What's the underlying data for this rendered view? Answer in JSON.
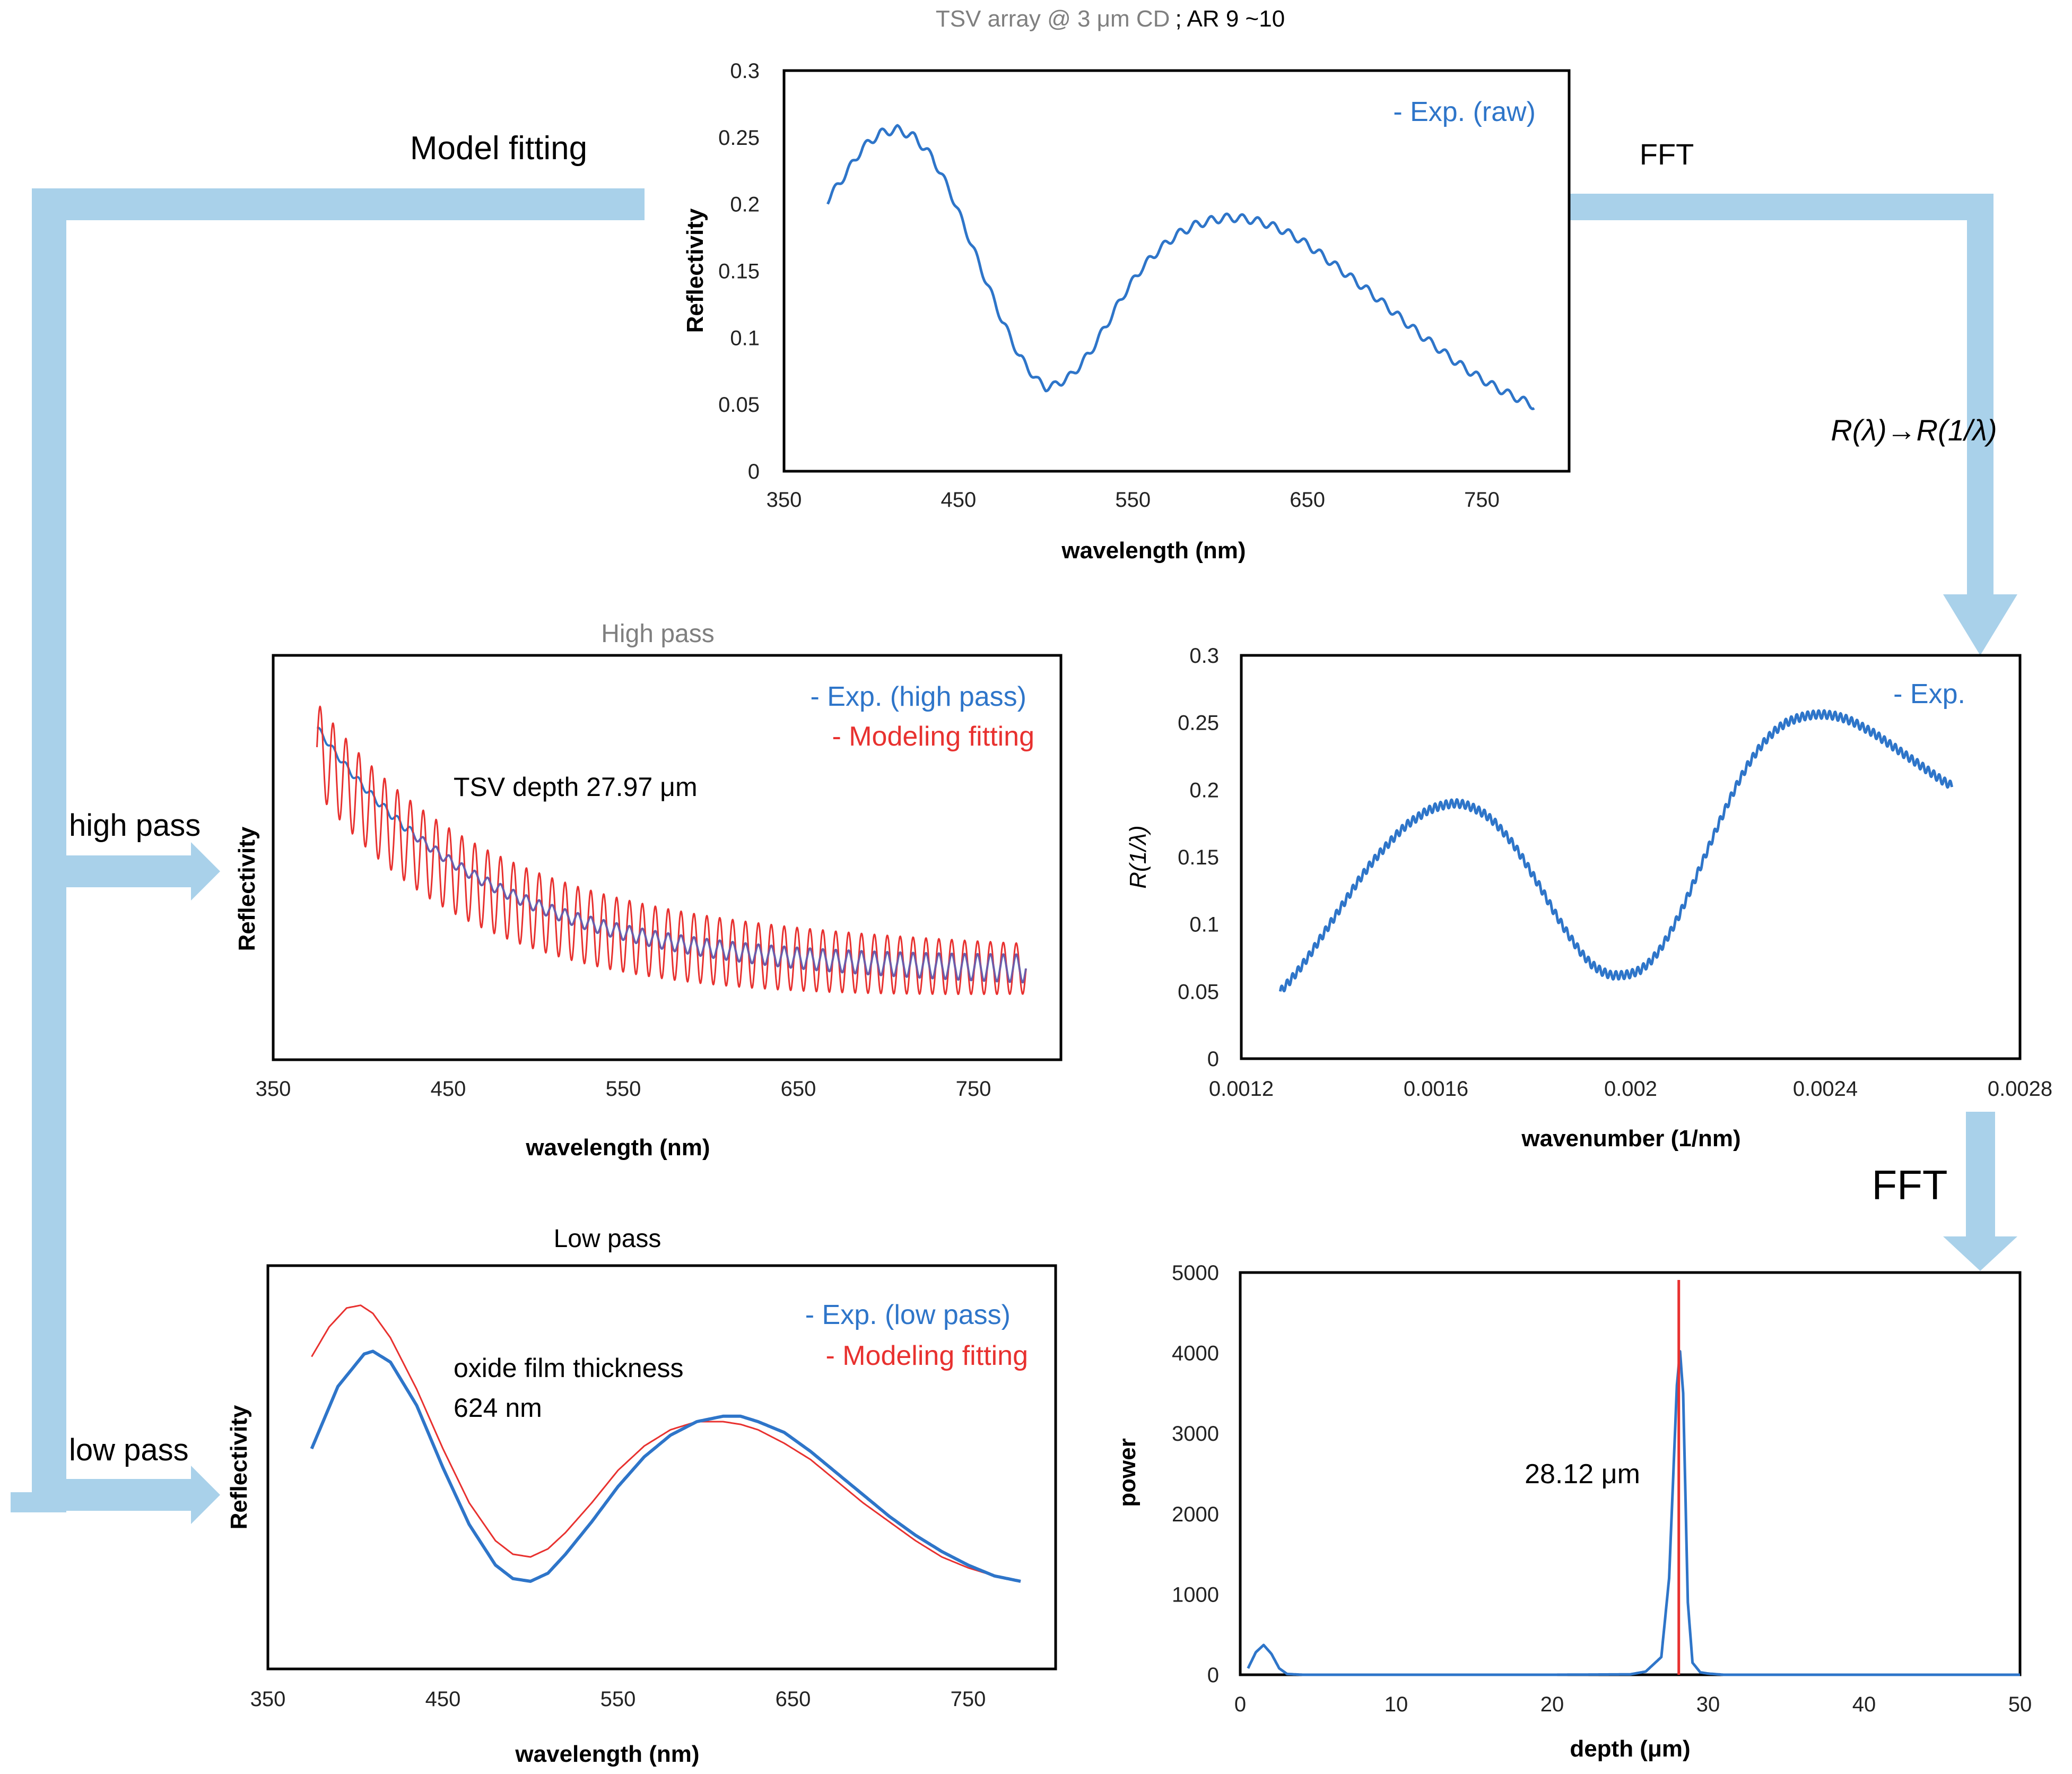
{
  "colors": {
    "blue": "#2e75c9",
    "red": "#e8312f",
    "flow": "#a9d1ea",
    "grey": "#7f7f7f",
    "purple": "#7458a6",
    "axis": "#000000"
  },
  "overall_title": {
    "prefix": "TSV array @ 3 μm CD",
    "suffix": "; AR 9 ~10"
  },
  "flow_labels": {
    "model_fitting": "Model fitting",
    "fft_top": "FFT",
    "transform": "R(λ)→R(1/λ)",
    "fft_right": "FFT",
    "high_pass": "high pass",
    "low_pass": "low pass"
  },
  "chart_data": [
    {
      "id": "raw",
      "type": "line",
      "title": "",
      "xlabel": "wavelength (nm)",
      "ylabel": "Reflectivity",
      "xlim": [
        350,
        800
      ],
      "ylim": [
        0,
        0.3
      ],
      "xticks": [
        "350",
        "450",
        "550",
        "650",
        "750"
      ],
      "yticks": [
        "0",
        "0.05",
        "0.1",
        "0.15",
        "0.2",
        "0.25",
        "0.3"
      ],
      "legend": [
        "- Exp. (raw)"
      ],
      "series": [
        {
          "name": "Exp. (raw)",
          "color": "#2e75c9",
          "x": [
            375,
            385,
            395,
            405,
            415,
            425,
            435,
            445,
            455,
            465,
            475,
            485,
            495,
            500,
            505,
            515,
            525,
            535,
            545,
            555,
            565,
            575,
            585,
            595,
            605,
            615,
            625,
            635,
            645,
            655,
            665,
            675,
            685,
            695,
            705,
            715,
            725,
            735,
            745,
            755,
            765,
            775,
            780
          ],
          "y": [
            0.203,
            0.222,
            0.242,
            0.253,
            0.256,
            0.25,
            0.235,
            0.21,
            0.178,
            0.145,
            0.113,
            0.086,
            0.068,
            0.063,
            0.064,
            0.072,
            0.088,
            0.11,
            0.133,
            0.152,
            0.166,
            0.177,
            0.184,
            0.188,
            0.19,
            0.189,
            0.186,
            0.181,
            0.174,
            0.165,
            0.155,
            0.145,
            0.135,
            0.124,
            0.113,
            0.102,
            0.092,
            0.082,
            0.073,
            0.065,
            0.058,
            0.052,
            0.049
          ],
          "ripple_amplitude": 0.003
        }
      ]
    },
    {
      "id": "high_pass",
      "type": "line",
      "title": "High pass",
      "xlabel": "wavelength (nm)",
      "ylabel": "Reflectivity",
      "xlim": [
        350,
        800
      ],
      "xticks": [
        "350",
        "450",
        "550",
        "650",
        "750"
      ],
      "legend": [
        "- Exp. (high pass)",
        "- Modeling fitting"
      ],
      "annotation": "TSV depth 27.97 μm",
      "series": [
        {
          "name": "Exp. (high pass)",
          "color": "#2e75c9",
          "x_start": 375,
          "x_end": 780,
          "baseline_start": 0.97,
          "baseline_end": 0.1,
          "oscillation_amplitude": 0.05,
          "oscillation_count": 55
        },
        {
          "name": "Modeling fitting",
          "color": "#e8312f",
          "x_start": 375,
          "x_end": 780,
          "baseline_start": 0.9,
          "baseline_end": 0.1,
          "oscillation_amplitude": 0.1,
          "oscillation_count": 55
        }
      ]
    },
    {
      "id": "wavenumber",
      "type": "line",
      "title": "",
      "xlabel": "wavenumber (1/nm)",
      "ylabel": "R(1/λ)",
      "xlim": [
        0.0012,
        0.0028
      ],
      "ylim": [
        0,
        0.3
      ],
      "xticks": [
        "0.0012",
        "0.0016",
        "0.002",
        "0.0024",
        "0.0028"
      ],
      "yticks": [
        "0",
        "0.05",
        "0.1",
        "0.15",
        "0.2",
        "0.25",
        "0.3"
      ],
      "legend": [
        "- Exp."
      ],
      "series": [
        {
          "name": "Exp.",
          "color": "#2e75c9",
          "x": [
            0.00128,
            0.0013,
            0.00132,
            0.00134,
            0.00136,
            0.00138,
            0.0014,
            0.00142,
            0.00144,
            0.00146,
            0.00148,
            0.0015,
            0.00152,
            0.00154,
            0.00156,
            0.00158,
            0.0016,
            0.00162,
            0.00164,
            0.00166,
            0.00168,
            0.0017,
            0.00172,
            0.00174,
            0.00176,
            0.00178,
            0.0018,
            0.00182,
            0.00184,
            0.00186,
            0.00188,
            0.0019,
            0.00192,
            0.00194,
            0.00196,
            0.00198,
            0.002,
            0.00202,
            0.00204,
            0.00206,
            0.00208,
            0.0021,
            0.00212,
            0.00214,
            0.00216,
            0.00218,
            0.0022,
            0.00222,
            0.00224,
            0.00226,
            0.00228,
            0.0023,
            0.00232,
            0.00234,
            0.00236,
            0.00238,
            0.0024,
            0.00242,
            0.00244,
            0.00246,
            0.00248,
            0.0025,
            0.00252,
            0.00254,
            0.00256,
            0.00258,
            0.0026,
            0.00262,
            0.00264,
            0.00266
          ],
          "y": [
            0.05,
            0.058,
            0.067,
            0.077,
            0.088,
            0.099,
            0.11,
            0.121,
            0.132,
            0.142,
            0.151,
            0.159,
            0.167,
            0.174,
            0.179,
            0.184,
            0.187,
            0.189,
            0.19,
            0.189,
            0.186,
            0.182,
            0.176,
            0.168,
            0.159,
            0.148,
            0.136,
            0.124,
            0.111,
            0.099,
            0.088,
            0.078,
            0.07,
            0.065,
            0.062,
            0.062,
            0.063,
            0.066,
            0.072,
            0.081,
            0.093,
            0.107,
            0.123,
            0.14,
            0.157,
            0.174,
            0.19,
            0.205,
            0.218,
            0.229,
            0.238,
            0.245,
            0.25,
            0.253,
            0.255,
            0.256,
            0.256,
            0.255,
            0.253,
            0.25,
            0.246,
            0.242,
            0.237,
            0.232,
            0.227,
            0.222,
            0.217,
            0.212,
            0.207,
            0.203
          ],
          "ripple_amplitude": 0.003
        }
      ]
    },
    {
      "id": "low_pass",
      "type": "line",
      "title": "Low pass",
      "xlabel": "wavelength (nm)",
      "ylabel": "Reflectivity",
      "xlim": [
        350,
        800
      ],
      "xticks": [
        "350",
        "450",
        "550",
        "650",
        "750"
      ],
      "legend": [
        "- Exp. (low pass)",
        "- Modeling fitting"
      ],
      "annotation": [
        "oxide film thickness",
        "624 nm"
      ],
      "series": [
        {
          "name": "Exp. (low pass)",
          "color": "#2e75c9",
          "x": [
            375,
            390,
            405,
            410,
            420,
            435,
            450,
            465,
            480,
            490,
            500,
            510,
            520,
            535,
            550,
            565,
            580,
            595,
            610,
            620,
            630,
            645,
            660,
            675,
            690,
            705,
            720,
            735,
            750,
            765,
            780
          ],
          "y": [
            0.5,
            0.73,
            0.85,
            0.86,
            0.82,
            0.66,
            0.43,
            0.22,
            0.07,
            0.02,
            0.01,
            0.04,
            0.11,
            0.23,
            0.36,
            0.47,
            0.55,
            0.6,
            0.62,
            0.62,
            0.6,
            0.56,
            0.49,
            0.41,
            0.33,
            0.25,
            0.18,
            0.12,
            0.07,
            0.03,
            0.01
          ]
        },
        {
          "name": "Modeling fitting",
          "color": "#e8312f",
          "x": [
            375,
            385,
            395,
            403,
            410,
            420,
            435,
            450,
            465,
            480,
            490,
            500,
            510,
            520,
            535,
            550,
            565,
            580,
            595,
            610,
            620,
            630,
            645,
            660,
            675,
            690,
            705,
            720,
            735,
            750,
            765,
            780
          ],
          "y": [
            0.84,
            0.95,
            1.02,
            1.03,
            1.0,
            0.91,
            0.72,
            0.5,
            0.3,
            0.16,
            0.11,
            0.1,
            0.13,
            0.19,
            0.3,
            0.42,
            0.51,
            0.57,
            0.6,
            0.6,
            0.59,
            0.57,
            0.52,
            0.46,
            0.38,
            0.3,
            0.23,
            0.16,
            0.1,
            0.06,
            0.03,
            0.01
          ]
        }
      ]
    },
    {
      "id": "fft",
      "type": "line",
      "title": "",
      "xlabel": "depth (μm)",
      "ylabel": "power",
      "xlim": [
        0,
        50
      ],
      "ylim": [
        0,
        5000
      ],
      "xticks": [
        "0",
        "10",
        "20",
        "30",
        "40",
        "50"
      ],
      "yticks": [
        "0",
        "1000",
        "2000",
        "3000",
        "4000",
        "5000"
      ],
      "annotation": "28.12 μm",
      "marker_depth": 28.12,
      "series": [
        {
          "name": "FFT power",
          "color": "#2e75c9",
          "x": [
            0.5,
            1.0,
            1.5,
            2.0,
            2.5,
            3.0,
            4.0,
            10,
            20,
            25,
            26,
            27,
            27.5,
            28.0,
            28.2,
            28.4,
            28.7,
            29.0,
            29.5,
            30,
            31,
            40,
            50
          ],
          "y": [
            80,
            280,
            370,
            260,
            80,
            10,
            0,
            0,
            0,
            5,
            40,
            220,
            1200,
            3600,
            4020,
            3500,
            900,
            150,
            30,
            15,
            0,
            0,
            0
          ]
        }
      ]
    }
  ]
}
